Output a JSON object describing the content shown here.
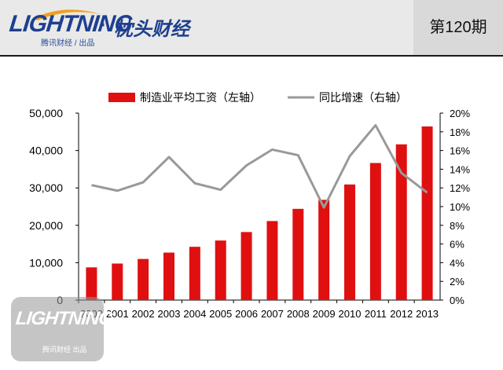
{
  "header": {
    "logo_word": "LIGHTNING",
    "logo_separator": "·",
    "logo_cn": "枕头财经",
    "logo_sub": "腾讯财经 / 出品",
    "issue": "第120期"
  },
  "watermark": {
    "word": "LIGHTNING",
    "sub": "腾讯财经 出品"
  },
  "colors": {
    "bar": "#e01010",
    "line": "#999999",
    "brand": "#1e3f8f"
  },
  "chart_data": {
    "type": "bar",
    "title": "",
    "categories": [
      "2000",
      "2001",
      "2002",
      "2003",
      "2004",
      "2005",
      "2006",
      "2007",
      "2008",
      "2009",
      "2010",
      "2011",
      "2012",
      "2013"
    ],
    "series": [
      {
        "name": "制造业平均工资（左轴）",
        "type": "bar",
        "axis": "left",
        "values": [
          8750,
          9770,
          11000,
          12700,
          14250,
          15930,
          18200,
          21140,
          24400,
          26810,
          30920,
          36660,
          41650,
          46430
        ]
      },
      {
        "name": "同比增速（右轴）",
        "type": "line",
        "axis": "right",
        "values": [
          12.3,
          11.7,
          12.6,
          15.3,
          12.5,
          11.8,
          14.4,
          16.1,
          15.5,
          9.9,
          15.4,
          18.7,
          13.6,
          11.5
        ]
      }
    ],
    "y_left": {
      "ylim": [
        0,
        50000
      ],
      "ticks": [
        "0",
        "10,000",
        "20,000",
        "30,000",
        "40,000",
        "50,000"
      ]
    },
    "y_right": {
      "ylim": [
        0,
        20
      ],
      "ticks": [
        "0%",
        "2%",
        "4%",
        "6%",
        "8%",
        "10%",
        "12%",
        "14%",
        "16%",
        "18%",
        "20%"
      ]
    },
    "legend_position": "top",
    "grid": false
  }
}
